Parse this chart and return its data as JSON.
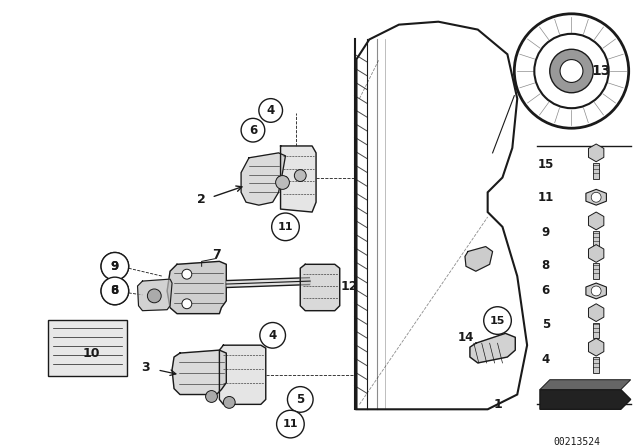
{
  "bg_color": "#ffffff",
  "diagram_id": "00213524",
  "fig_width": 6.4,
  "fig_height": 4.48,
  "dpi": 100,
  "lc": "#1a1a1a"
}
